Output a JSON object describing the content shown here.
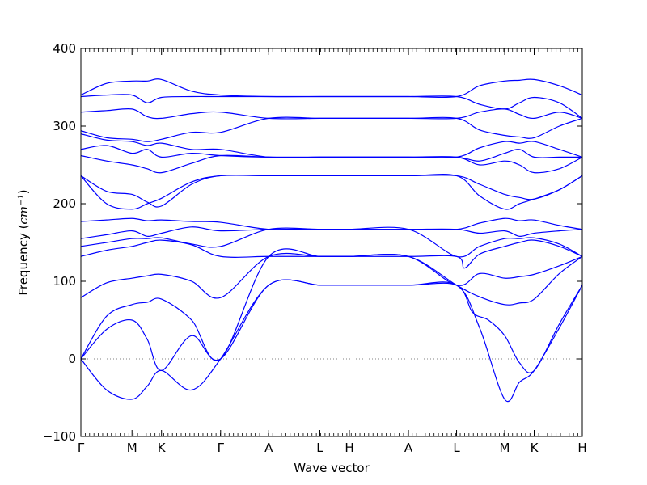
{
  "chart_data": {
    "type": "line",
    "xlabel": "Wave vector",
    "ylabel_prefix": "Frequency (",
    "ylabel_unit": "cm",
    "ylabel_exp": "−1",
    "ylabel_suffix": ")",
    "ylim": [
      -100,
      400
    ],
    "yticks": [
      -100,
      0,
      100,
      200,
      300,
      400
    ],
    "ytick_labels": [
      "−100",
      "0",
      "100",
      "200",
      "300",
      "400"
    ],
    "grid": false,
    "zero_line": true,
    "line_color": "#0000ff",
    "zero_line_color": "#808080",
    "xticks": [
      {
        "label": "Γ",
        "pos": 0.0
      },
      {
        "label": "M",
        "pos": 0.577
      },
      {
        "label": "K",
        "pos": 0.91
      },
      {
        "label": "Γ",
        "pos": 1.577
      },
      {
        "label": "A",
        "pos": 2.12
      },
      {
        "label": "L",
        "pos": 2.697
      },
      {
        "label": "H",
        "pos": 3.03
      },
      {
        "label": "A",
        "pos": 3.697
      },
      {
        "label": "L",
        "pos": 4.24
      },
      {
        "label": "M",
        "pos": 4.783
      },
      {
        "label": "K",
        "pos": 5.116
      },
      {
        "label": "H",
        "pos": 5.659
      }
    ],
    "series": [
      {
        "x": [
          0,
          0.29,
          0.577,
          0.75,
          0.91,
          1.25,
          1.577,
          2.12,
          2.697,
          3.03,
          3.697,
          4.24,
          4.5,
          4.783,
          4.95,
          5.116,
          5.4,
          5.659
        ],
        "y": [
          0,
          -40,
          -52,
          -35,
          -15,
          -40,
          0,
          95,
          95,
          95,
          95,
          95,
          40,
          -52,
          -30,
          -15,
          40,
          95
        ]
      },
      {
        "x": [
          0,
          0.29,
          0.577,
          0.75,
          0.91,
          1.25,
          1.577,
          2.12,
          2.697,
          3.03,
          3.697,
          4.24,
          4.42,
          4.6,
          4.783,
          4.95,
          5.116,
          5.4,
          5.659
        ],
        "y": [
          0,
          38,
          50,
          25,
          -15,
          30,
          0,
          95,
          95,
          95,
          95,
          95,
          60,
          50,
          30,
          -5,
          -15,
          45,
          95
        ]
      },
      {
        "x": [
          0,
          0.29,
          0.577,
          0.75,
          0.91,
          1.25,
          1.577,
          2.12,
          2.697,
          3.03,
          3.697,
          4.24,
          4.5,
          4.783,
          4.95,
          5.116,
          5.4,
          5.659
        ],
        "y": [
          0,
          55,
          70,
          73,
          77,
          50,
          0,
          132,
          132,
          132,
          132,
          95,
          80,
          70,
          72,
          77,
          110,
          132
        ]
      },
      {
        "x": [
          0,
          0.29,
          0.577,
          0.75,
          0.91,
          1.25,
          1.577,
          2.12,
          2.697,
          3.03,
          3.697,
          4.24,
          4.5,
          4.783,
          4.95,
          5.116,
          5.4,
          5.659
        ],
        "y": [
          79,
          98,
          104,
          107,
          109,
          100,
          79,
          132,
          132,
          132,
          132,
          95,
          110,
          104,
          106,
          109,
          120,
          132
        ]
      },
      {
        "x": [
          0,
          0.29,
          0.577,
          0.75,
          0.91,
          1.25,
          1.577,
          2.12,
          2.697,
          3.03,
          3.697,
          4.24,
          4.33,
          4.5,
          4.783,
          4.95,
          5.116,
          5.4,
          5.659
        ],
        "y": [
          132,
          140,
          145,
          150,
          153,
          147,
          132,
          132,
          132,
          132,
          132,
          132,
          117,
          135,
          145,
          150,
          153,
          145,
          132
        ]
      },
      {
        "x": [
          0,
          0.29,
          0.577,
          0.75,
          0.91,
          1.25,
          1.577,
          2.12,
          2.697,
          3.03,
          3.697,
          4.24,
          4.5,
          4.783,
          4.95,
          5.116,
          5.4,
          5.659
        ],
        "y": [
          145,
          150,
          155,
          155,
          156,
          148,
          145,
          167,
          167,
          167,
          167,
          132,
          145,
          155,
          155,
          156,
          148,
          132
        ]
      },
      {
        "x": [
          0,
          0.29,
          0.577,
          0.75,
          0.91,
          1.25,
          1.577,
          2.12,
          2.697,
          3.03,
          3.697,
          4.24,
          4.5,
          4.783,
          4.95,
          5.116,
          5.4,
          5.659
        ],
        "y": [
          155,
          160,
          165,
          158,
          162,
          170,
          165,
          167,
          167,
          167,
          167,
          167,
          162,
          165,
          158,
          162,
          165,
          167
        ]
      },
      {
        "x": [
          0,
          0.29,
          0.577,
          0.75,
          0.91,
          1.25,
          1.577,
          2.12,
          2.697,
          3.03,
          3.697,
          4.24,
          4.5,
          4.783,
          4.95,
          5.116,
          5.4,
          5.659
        ],
        "y": [
          177,
          179,
          181,
          178,
          179,
          177,
          176,
          167,
          167,
          167,
          167,
          167,
          175,
          181,
          178,
          179,
          172,
          167
        ]
      },
      {
        "x": [
          0,
          0.29,
          0.577,
          0.75,
          0.91,
          1.25,
          1.577,
          2.12,
          2.697,
          3.03,
          3.697,
          4.24,
          4.5,
          4.783,
          4.95,
          5.116,
          5.4,
          5.659
        ],
        "y": [
          236,
          216,
          212,
          202,
          197,
          225,
          236,
          236,
          236,
          236,
          236,
          236,
          210,
          193,
          200,
          206,
          218,
          236
        ]
      },
      {
        "x": [
          0,
          0.29,
          0.577,
          0.75,
          0.91,
          1.25,
          1.577,
          2.12,
          2.697,
          3.03,
          3.697,
          4.24,
          4.5,
          4.783,
          4.95,
          5.116,
          5.4,
          5.659
        ],
        "y": [
          236,
          200,
          193,
          200,
          207,
          228,
          236,
          236,
          236,
          236,
          236,
          236,
          225,
          212,
          208,
          206,
          218,
          236
        ]
      },
      {
        "x": [
          0,
          0.29,
          0.577,
          0.75,
          0.91,
          1.25,
          1.577,
          2.12,
          2.697,
          3.03,
          3.697,
          4.24,
          4.5,
          4.783,
          4.95,
          5.116,
          5.4,
          5.659
        ],
        "y": [
          262,
          255,
          250,
          245,
          240,
          252,
          262,
          260,
          260,
          260,
          260,
          260,
          250,
          255,
          250,
          240,
          245,
          260
        ]
      },
      {
        "x": [
          0,
          0.29,
          0.577,
          0.75,
          0.91,
          1.25,
          1.577,
          2.12,
          2.697,
          3.03,
          3.697,
          4.24,
          4.5,
          4.783,
          4.95,
          5.116,
          5.4,
          5.659
        ],
        "y": [
          270,
          275,
          265,
          270,
          260,
          265,
          262,
          260,
          260,
          260,
          260,
          260,
          255,
          265,
          270,
          260,
          260,
          260
        ]
      },
      {
        "x": [
          0,
          0.29,
          0.577,
          0.75,
          0.91,
          1.25,
          1.577,
          2.12,
          2.697,
          3.03,
          3.697,
          4.24,
          4.5,
          4.783,
          4.95,
          5.116,
          5.4,
          5.659
        ],
        "y": [
          290,
          282,
          280,
          275,
          278,
          270,
          270,
          260,
          260,
          260,
          260,
          260,
          272,
          280,
          278,
          280,
          270,
          260
        ]
      },
      {
        "x": [
          0,
          0.29,
          0.577,
          0.75,
          0.91,
          1.25,
          1.577,
          2.12,
          2.697,
          3.03,
          3.697,
          4.24,
          4.5,
          4.783,
          4.95,
          5.116,
          5.4,
          5.659
        ],
        "y": [
          294,
          285,
          283,
          280,
          283,
          292,
          292,
          310,
          310,
          310,
          310,
          310,
          295,
          288,
          286,
          285,
          300,
          310
        ]
      },
      {
        "x": [
          0,
          0.29,
          0.577,
          0.75,
          0.91,
          1.25,
          1.577,
          2.12,
          2.697,
          3.03,
          3.697,
          4.24,
          4.5,
          4.783,
          4.95,
          5.116,
          5.4,
          5.659
        ],
        "y": [
          318,
          320,
          322,
          312,
          310,
          316,
          318,
          310,
          310,
          310,
          310,
          310,
          318,
          322,
          315,
          310,
          318,
          310
        ]
      },
      {
        "x": [
          0,
          0.29,
          0.577,
          0.75,
          0.91,
          1.25,
          1.577,
          2.12,
          2.697,
          3.03,
          3.697,
          4.24,
          4.5,
          4.783,
          4.95,
          5.116,
          5.4,
          5.659
        ],
        "y": [
          338,
          340,
          340,
          330,
          337,
          338,
          338,
          338,
          338,
          338,
          338,
          338,
          328,
          322,
          330,
          337,
          330,
          310
        ]
      },
      {
        "x": [
          0,
          0.29,
          0.577,
          0.75,
          0.91,
          1.25,
          1.577,
          2.12,
          2.697,
          3.03,
          3.697,
          4.24,
          4.5,
          4.783,
          4.95,
          5.116,
          5.4,
          5.659
        ],
        "y": [
          340,
          355,
          358,
          358,
          360,
          345,
          340,
          338,
          338,
          338,
          338,
          338,
          352,
          358,
          359,
          360,
          352,
          340
        ]
      }
    ]
  }
}
